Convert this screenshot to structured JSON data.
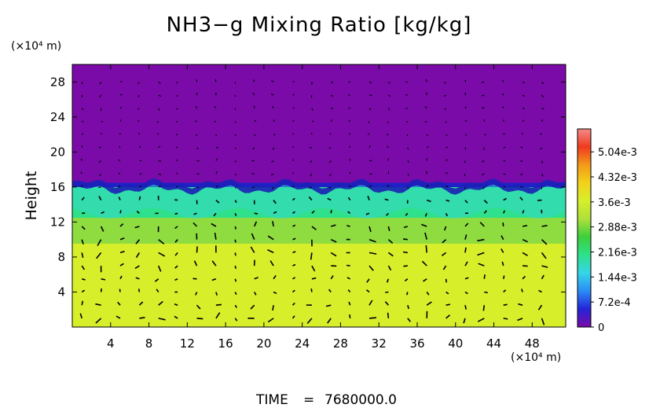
{
  "chart_data": {
    "type": "heatmap",
    "title": "NH3−g Mixing Ratio [kg/kg]",
    "ylabel": "Height",
    "y_unit": "(×10⁴ m)",
    "x_unit": "(×10⁴ m)",
    "xlim": [
      0,
      51.5
    ],
    "ylim": [
      0,
      30
    ],
    "x_ticks": [
      4,
      8,
      12,
      16,
      20,
      24,
      28,
      32,
      36,
      40,
      44,
      48
    ],
    "y_ticks": [
      4,
      8,
      12,
      16,
      20,
      24,
      28
    ],
    "colorbar": {
      "ticks": [
        {
          "value": 0,
          "label": "0"
        },
        {
          "value": 0.00072,
          "label": "7.2e-4"
        },
        {
          "value": 0.00144,
          "label": "1.44e-3"
        },
        {
          "value": 0.00216,
          "label": "2.16e-3"
        },
        {
          "value": 0.00288,
          "label": "2.88e-3"
        },
        {
          "value": 0.0036,
          "label": "3.6e-3"
        },
        {
          "value": 0.00432,
          "label": "4.32e-3"
        },
        {
          "value": 0.00504,
          "label": "5.04e-3"
        }
      ],
      "max": 0.0057,
      "stops": [
        "#7b0ba8",
        "#2424d8",
        "#2a8cf5",
        "#35d6e8",
        "#2ee08a",
        "#3ccf3c",
        "#aee03a",
        "#d6ef2a",
        "#f2d21a",
        "#f49a1a",
        "#ef3a1e",
        "#f48a8a"
      ]
    },
    "layers": [
      {
        "name": "upper",
        "y_range": [
          16.5,
          30
        ],
        "value": 0.0,
        "color": "#7a0ba8"
      },
      {
        "name": "interface",
        "y_range": [
          16.0,
          16.8
        ],
        "value": 0.0005,
        "color": "#2020c8"
      },
      {
        "name": "mixed",
        "y_range": [
          12.5,
          16.0
        ],
        "value": 0.0026,
        "color": "#2fe08c"
      },
      {
        "name": "transition",
        "y_range": [
          9.5,
          12.5
        ],
        "value": 0.0033,
        "color": "#8fdc40"
      },
      {
        "name": "lower",
        "y_range": [
          0,
          9.5
        ],
        "value": 0.0038,
        "color": "#d6ef2a"
      }
    ],
    "time_label": "TIME",
    "time_value": "7680000.0"
  },
  "colors": {
    "background": "#ffffff",
    "axis": "#000000",
    "vectors": "#000000"
  }
}
